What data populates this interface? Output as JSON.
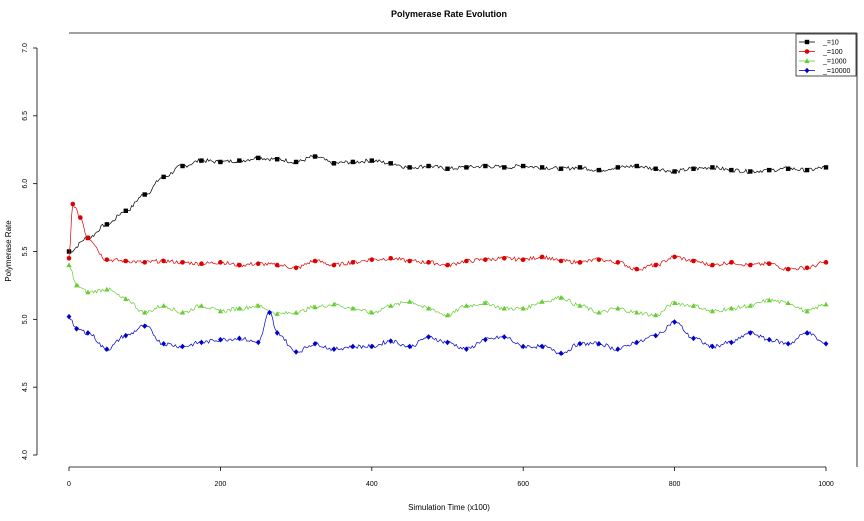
{
  "chart_data": {
    "type": "line",
    "title": "Polymerase Rate Evolution",
    "xlabel": "Simulation Time (x100)",
    "ylabel": "Polymerase Rate",
    "xlim": [
      0,
      1000
    ],
    "ylim": [
      4.0,
      7.0
    ],
    "x_ticks": [
      "0",
      "200",
      "400",
      "600",
      "800",
      "1000"
    ],
    "y_ticks": [
      "4.0",
      "4.5",
      "5.0",
      "5.5",
      "6.0",
      "6.5",
      "7.0"
    ],
    "grid": false,
    "legend_position": "top-right",
    "series": [
      {
        "name": "_=10",
        "color": "#000000",
        "marker": "square",
        "x": [
          0,
          25,
          50,
          75,
          100,
          125,
          150,
          175,
          200,
          225,
          250,
          275,
          300,
          325,
          350,
          375,
          400,
          425,
          450,
          475,
          500,
          525,
          550,
          575,
          600,
          625,
          650,
          675,
          700,
          725,
          750,
          775,
          800,
          825,
          850,
          875,
          900,
          925,
          950,
          975,
          1000
        ],
        "values": [
          5.5,
          5.6,
          5.7,
          5.8,
          5.92,
          6.05,
          6.13,
          6.17,
          6.16,
          6.17,
          6.19,
          6.18,
          6.16,
          6.2,
          6.15,
          6.16,
          6.17,
          6.15,
          6.12,
          6.13,
          6.11,
          6.12,
          6.13,
          6.12,
          6.13,
          6.12,
          6.11,
          6.12,
          6.1,
          6.12,
          6.13,
          6.11,
          6.09,
          6.11,
          6.12,
          6.1,
          6.09,
          6.1,
          6.11,
          6.1,
          6.12
        ]
      },
      {
        "name": "_=100",
        "color": "#dd0000",
        "marker": "circle",
        "x": [
          0,
          5,
          15,
          25,
          50,
          75,
          100,
          125,
          150,
          175,
          200,
          225,
          250,
          275,
          300,
          325,
          350,
          375,
          400,
          425,
          450,
          475,
          500,
          525,
          550,
          575,
          600,
          625,
          650,
          675,
          700,
          725,
          750,
          775,
          800,
          825,
          850,
          875,
          900,
          925,
          950,
          975,
          1000
        ],
        "values": [
          5.45,
          5.85,
          5.75,
          5.6,
          5.44,
          5.43,
          5.42,
          5.43,
          5.42,
          5.41,
          5.42,
          5.4,
          5.41,
          5.4,
          5.38,
          5.43,
          5.4,
          5.42,
          5.44,
          5.45,
          5.43,
          5.42,
          5.4,
          5.43,
          5.44,
          5.45,
          5.44,
          5.46,
          5.43,
          5.42,
          5.44,
          5.42,
          5.37,
          5.4,
          5.46,
          5.43,
          5.4,
          5.42,
          5.4,
          5.41,
          5.37,
          5.38,
          5.42
        ]
      },
      {
        "name": "_=1000",
        "color": "#66cc33",
        "marker": "triangle",
        "x": [
          0,
          10,
          25,
          50,
          75,
          100,
          125,
          150,
          175,
          200,
          225,
          250,
          275,
          300,
          325,
          350,
          375,
          400,
          425,
          450,
          475,
          500,
          525,
          550,
          575,
          600,
          625,
          650,
          675,
          700,
          725,
          750,
          775,
          800,
          825,
          850,
          875,
          900,
          925,
          950,
          975,
          1000
        ],
        "values": [
          5.4,
          5.25,
          5.2,
          5.22,
          5.15,
          5.05,
          5.1,
          5.05,
          5.1,
          5.06,
          5.08,
          5.1,
          5.04,
          5.05,
          5.09,
          5.11,
          5.08,
          5.05,
          5.1,
          5.13,
          5.08,
          5.03,
          5.1,
          5.12,
          5.08,
          5.08,
          5.13,
          5.16,
          5.1,
          5.05,
          5.08,
          5.05,
          5.03,
          5.12,
          5.1,
          5.06,
          5.08,
          5.1,
          5.14,
          5.12,
          5.06,
          5.11
        ]
      },
      {
        "name": "_=10000",
        "color": "#0000cc",
        "marker": "diamond",
        "x": [
          0,
          10,
          25,
          50,
          75,
          100,
          125,
          150,
          175,
          200,
          225,
          250,
          265,
          275,
          300,
          325,
          350,
          375,
          400,
          425,
          450,
          475,
          500,
          525,
          550,
          575,
          600,
          625,
          650,
          675,
          700,
          725,
          750,
          775,
          800,
          825,
          850,
          875,
          900,
          925,
          950,
          975,
          1000
        ],
        "values": [
          5.02,
          4.93,
          4.9,
          4.78,
          4.88,
          4.95,
          4.82,
          4.8,
          4.83,
          4.85,
          4.86,
          4.83,
          5.05,
          4.9,
          4.76,
          4.82,
          4.78,
          4.8,
          4.8,
          4.84,
          4.8,
          4.87,
          4.83,
          4.78,
          4.85,
          4.87,
          4.8,
          4.8,
          4.75,
          4.82,
          4.82,
          4.78,
          4.83,
          4.88,
          4.98,
          4.86,
          4.8,
          4.83,
          4.9,
          4.85,
          4.82,
          4.9,
          4.82
        ]
      }
    ]
  }
}
